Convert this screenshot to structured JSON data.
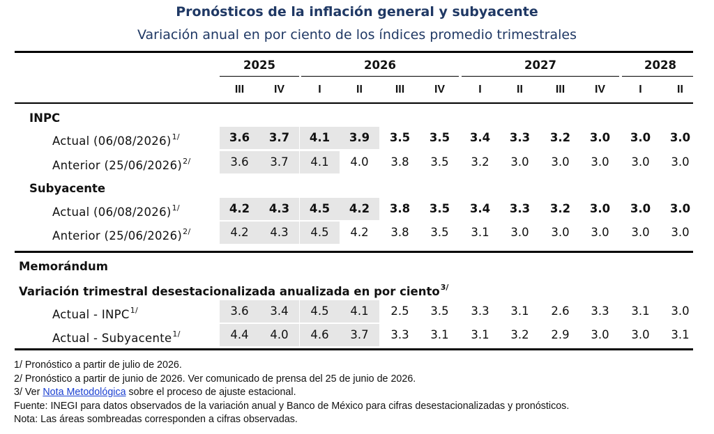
{
  "title": "Pronósticos de la inflación general y subyacente",
  "subtitle": "Variación anual en por ciento de los índices promedio trimestrales",
  "years": [
    "2025",
    "2026",
    "2027",
    "2028"
  ],
  "quarters": [
    "III",
    "IV",
    "I",
    "II",
    "III",
    "IV",
    "I",
    "II",
    "III",
    "IV",
    "I",
    "II"
  ],
  "sections": {
    "inpc": "INPC",
    "subyacente": "Subyacente",
    "memo": "Memorándum",
    "memo_sub": "Variación trimestral desestacionalizada anualizada en por ciento",
    "memo_sub_sup": "3/"
  },
  "rows": {
    "inpc_actual": {
      "label": "Actual (06/08/2026)",
      "sup": "1/",
      "values": [
        "3.6",
        "3.7",
        "4.1",
        "3.9",
        "3.5",
        "3.5",
        "3.4",
        "3.3",
        "3.2",
        "3.0",
        "3.0",
        "3.0"
      ]
    },
    "inpc_anterior": {
      "label": "Anterior (25/06/2026)",
      "sup": "2/",
      "values": [
        "3.6",
        "3.7",
        "4.1",
        "4.0",
        "3.8",
        "3.5",
        "3.2",
        "3.0",
        "3.0",
        "3.0",
        "3.0",
        "3.0"
      ]
    },
    "sub_actual": {
      "label": "Actual (06/08/2026)",
      "sup": "1/",
      "values": [
        "4.2",
        "4.3",
        "4.5",
        "4.2",
        "3.8",
        "3.5",
        "3.4",
        "3.3",
        "3.2",
        "3.0",
        "3.0",
        "3.0"
      ]
    },
    "sub_anterior": {
      "label": "Anterior (25/06/2026)",
      "sup": "2/",
      "values": [
        "4.2",
        "4.3",
        "4.5",
        "4.2",
        "3.8",
        "3.5",
        "3.1",
        "3.0",
        "3.0",
        "3.0",
        "3.0",
        "3.0"
      ]
    },
    "memo_inpc": {
      "label": "Actual - INPC",
      "sup": "1/",
      "values": [
        "3.6",
        "3.4",
        "4.5",
        "4.1",
        "2.5",
        "3.5",
        "3.3",
        "3.1",
        "2.6",
        "3.3",
        "3.1",
        "3.0"
      ]
    },
    "memo_sub": {
      "label": "Actual - Subyacente",
      "sup": "1/",
      "values": [
        "4.4",
        "4.0",
        "4.6",
        "3.7",
        "3.3",
        "3.1",
        "3.1",
        "3.2",
        "2.9",
        "3.0",
        "3.0",
        "3.1"
      ]
    }
  },
  "shading_color": "#e6e6e6",
  "title_color": "#1f3864",
  "notes": {
    "n1": "1/ Pronóstico a partir de julio de 2026.",
    "n2": "2/ Pronóstico a partir de junio de 2026. Ver comunicado de prensa del 25 de junio de 2026.",
    "n3_pre": "3/ Ver ",
    "n3_link": "Nota Metodológica",
    "n3_post": " sobre el proceso de ajuste estacional.",
    "fuente": "Fuente: INEGI para datos observados de la variación anual y Banco de México para cifras desestacionalizadas y pronósticos.",
    "nota": "Nota: Las áreas sombreadas corresponden a cifras observadas."
  }
}
